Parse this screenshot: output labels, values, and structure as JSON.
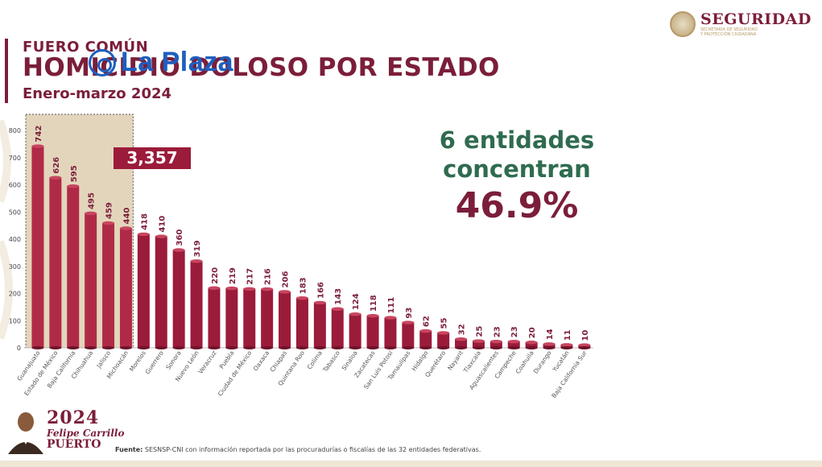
{
  "header": {
    "kicker": "FUERO COMÚN",
    "title": "HOMICIDIO DOLOSO POR ESTADO",
    "subtitle": "Enero-marzo 2024"
  },
  "watermark": {
    "text": "La Plaza",
    "icon": "la-plaza-logo-icon"
  },
  "logo": {
    "name": "SEGURIDAD",
    "sub1": "SECRETARÍA DE SEGURIDAD",
    "sub2": "Y PROTECCIÓN CIUDADANA",
    "icon": "mexico-seal-icon"
  },
  "highlight": {
    "line1": "6 entidades",
    "line2": "concentran",
    "percent": "46.9%"
  },
  "total_badge": "3,357",
  "footer": {
    "year": "2024",
    "name_line1": "Felipe Carrillo",
    "name_line2": "PUERTO",
    "source_label": "Fuente:",
    "source_text": " SESNSP-CNI con información reportada por las procuradurías o fiscalías de las 32 entidades federativas."
  },
  "colors": {
    "bar": "#9b1b3a",
    "bar_highlight": "#b02a48",
    "highlight_box": "#d9c7a4",
    "accent": "#7b1e3a",
    "green": "#2f6b4f"
  },
  "chart_data": {
    "type": "bar",
    "categories": [
      "Guanajuato",
      "Estado de México",
      "Baja California",
      "Chihuahua",
      "Jalisco",
      "Michoacán",
      "Morelos",
      "Guerrero",
      "Sonora",
      "Nuevo León",
      "Veracruz",
      "Puebla",
      "Ciudad de México",
      "Oaxaca",
      "Chiapas",
      "Quintana Roo",
      "Colima",
      "Tabasco",
      "Sinaloa",
      "Zacatecas",
      "San Luis Potosí",
      "Tamaulipas",
      "Hidalgo",
      "Querétaro",
      "Nayarit",
      "Tlaxcala",
      "Aguascalientes",
      "Campeche",
      "Coahuila",
      "Durango",
      "Yucatán",
      "Baja California Sur"
    ],
    "values": [
      742,
      626,
      595,
      495,
      459,
      440,
      418,
      410,
      360,
      319,
      220,
      219,
      217,
      216,
      206,
      183,
      166,
      143,
      124,
      118,
      111,
      93,
      62,
      55,
      32,
      25,
      23,
      23,
      20,
      14,
      11,
      10
    ],
    "y_ticks": [
      "0",
      "100",
      "200",
      "300",
      "400",
      "500",
      "600",
      "700",
      "800"
    ],
    "ylim": [
      0,
      800
    ],
    "highlighted_count": 6,
    "grid": false
  }
}
